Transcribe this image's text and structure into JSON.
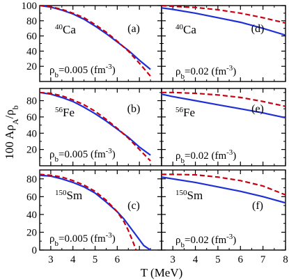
{
  "figure": {
    "ylabel_main": "100 Aρ",
    "ylabel_sub1": "A",
    "ylabel_slash": "/ρ",
    "ylabel_sub2": "b",
    "xlabel": "T (MeV)"
  },
  "style": {
    "solid_color": "#1f2fd6",
    "dashed_color": "#c8000f"
  },
  "chart_data": [
    {
      "type": "line",
      "panel_label": "(a)",
      "nucleus_mass": "40",
      "nucleus_symbol": "Ca",
      "density_text": "=0.005 (fm",
      "density_exp": "-3",
      "density_close": ")",
      "xlim": [
        2.5,
        8
      ],
      "ylim": [
        0,
        100
      ],
      "xticks": [
        3,
        4,
        5,
        6,
        7
      ],
      "xtick_labels": [
        "",
        "",
        "",
        "",
        ""
      ],
      "yticks": [
        20,
        40,
        60,
        80,
        100
      ],
      "ytick_labels": [
        "20",
        "40",
        "60",
        "80",
        "100"
      ],
      "series": [
        {
          "style": "solid",
          "x": [
            2.5,
            3,
            3.5,
            4,
            4.5,
            5,
            5.5,
            6,
            6.5,
            7,
            7.5
          ],
          "y": [
            100,
            98,
            94,
            89,
            82,
            73,
            63,
            52,
            41,
            28,
            16
          ]
        },
        {
          "style": "dashed",
          "x": [
            2.5,
            3,
            3.5,
            4,
            4.5,
            5,
            5.5,
            6,
            6.5,
            7,
            7.5
          ],
          "y": [
            100,
            98.5,
            95,
            90,
            84,
            75,
            65,
            53,
            40,
            24,
            7
          ]
        }
      ]
    },
    {
      "type": "line",
      "panel_label": "(d)",
      "nucleus_mass": "40",
      "nucleus_symbol": "Ca",
      "density_text": "=0.02 (fm",
      "density_exp": "-3",
      "density_close": ")",
      "xlim": [
        2.5,
        8
      ],
      "ylim": [
        0,
        100
      ],
      "xticks": [
        3,
        4,
        5,
        6,
        7,
        8
      ],
      "xtick_labels": [
        "",
        "",
        "",
        "",
        "",
        ""
      ],
      "yticks": [
        20,
        40,
        60,
        80,
        100
      ],
      "ytick_labels": [
        "",
        "",
        "",
        "",
        ""
      ],
      "series": [
        {
          "style": "solid",
          "x": [
            2.5,
            3,
            4,
            5,
            6,
            7,
            8
          ],
          "y": [
            97,
            95,
            90,
            84,
            78,
            70,
            61
          ]
        },
        {
          "style": "dashed",
          "x": [
            2.5,
            3,
            4,
            5,
            6,
            7,
            8
          ],
          "y": [
            100,
            99,
            97.5,
            94.5,
            90,
            84,
            77
          ]
        }
      ]
    },
    {
      "type": "line",
      "panel_label": "(b)",
      "nucleus_mass": "56",
      "nucleus_symbol": "Fe",
      "density_text": "=0.005 (fm",
      "density_exp": "-3",
      "density_close": ")",
      "xlim": [
        2.5,
        8
      ],
      "ylim": [
        0,
        95
      ],
      "xticks": [
        3,
        4,
        5,
        6,
        7
      ],
      "xtick_labels": [
        "",
        "",
        "",
        "",
        ""
      ],
      "yticks": [
        20,
        40,
        60,
        80
      ],
      "ytick_labels": [
        "20",
        "40",
        "60",
        "80"
      ],
      "series": [
        {
          "style": "solid",
          "x": [
            2.5,
            3,
            3.5,
            4,
            4.5,
            5,
            5.5,
            6,
            6.5,
            7,
            7.5
          ],
          "y": [
            90,
            88,
            84,
            79,
            72,
            64,
            55,
            45,
            35,
            23,
            13
          ]
        },
        {
          "style": "dashed",
          "x": [
            2.5,
            3,
            3.5,
            4,
            4.5,
            5,
            5.5,
            6,
            6.5,
            7,
            7.5
          ],
          "y": [
            90,
            89,
            86,
            81,
            75,
            67,
            57,
            46,
            34,
            20,
            6
          ]
        }
      ]
    },
    {
      "type": "line",
      "panel_label": "(e)",
      "nucleus_mass": "56",
      "nucleus_symbol": "Fe",
      "density_text": "=0.02 (fm",
      "density_exp": "-3",
      "density_close": ")",
      "xlim": [
        2.5,
        8
      ],
      "ylim": [
        0,
        95
      ],
      "xticks": [
        3,
        4,
        5,
        6,
        7,
        8
      ],
      "xtick_labels": [
        "",
        "",
        "",
        "",
        "",
        ""
      ],
      "yticks": [
        20,
        40,
        60,
        80
      ],
      "ytick_labels": [
        "",
        "",
        "",
        ""
      ],
      "series": [
        {
          "style": "solid",
          "x": [
            2.5,
            3,
            4,
            5,
            6,
            7,
            8
          ],
          "y": [
            88,
            85,
            80,
            75,
            70,
            65,
            59
          ]
        },
        {
          "style": "dashed",
          "x": [
            2.5,
            3,
            4,
            5,
            6,
            7,
            8
          ],
          "y": [
            90,
            90,
            89,
            87,
            84,
            79,
            73
          ]
        }
      ]
    },
    {
      "type": "line",
      "panel_label": "(c)",
      "nucleus_mass": "150",
      "nucleus_symbol": "Sm",
      "density_text": "=0.005 (fm",
      "density_exp": "-3",
      "density_close": ")",
      "xlim": [
        2.5,
        8
      ],
      "ylim": [
        0,
        90
      ],
      "xticks": [
        3,
        4,
        5,
        6,
        7
      ],
      "xtick_labels": [
        "3",
        "4",
        "5",
        "6",
        ""
      ],
      "yticks": [
        0,
        20,
        40,
        60,
        80
      ],
      "ytick_labels": [
        "0",
        "20",
        "40",
        "60",
        "80"
      ],
      "series": [
        {
          "style": "solid",
          "x": [
            2.5,
            3,
            3.5,
            4,
            4.5,
            5,
            5.5,
            6,
            6.3,
            6.6,
            6.9,
            7.2,
            7.5
          ],
          "y": [
            84,
            83,
            80,
            76,
            71,
            64,
            54,
            43,
            35,
            25,
            15,
            5,
            0
          ]
        },
        {
          "style": "dashed",
          "x": [
            2.5,
            3,
            3.5,
            4,
            4.5,
            5,
            5.5,
            6,
            6.3,
            6.5,
            6.7,
            6.85
          ],
          "y": [
            85,
            84,
            82,
            78,
            73,
            66,
            56,
            43,
            32,
            22,
            10,
            0
          ]
        }
      ]
    },
    {
      "type": "line",
      "panel_label": "(f)",
      "nucleus_mass": "150",
      "nucleus_symbol": "Sm",
      "density_text": "=0.02 (fm",
      "density_exp": "-3",
      "density_close": ")",
      "xlim": [
        2.5,
        8
      ],
      "ylim": [
        0,
        90
      ],
      "xticks": [
        3,
        4,
        5,
        6,
        7,
        8
      ],
      "xtick_labels": [
        "3",
        "4",
        "5",
        "6",
        "7",
        "8"
      ],
      "yticks": [
        0,
        20,
        40,
        60,
        80
      ],
      "ytick_labels": [
        "",
        "",
        "",
        "",
        ""
      ],
      "series": [
        {
          "style": "solid",
          "x": [
            2.5,
            3,
            4,
            5,
            6,
            7,
            8
          ],
          "y": [
            82,
            80,
            76,
            71,
            66,
            60,
            53
          ]
        },
        {
          "style": "dashed",
          "x": [
            2.5,
            3,
            4,
            5,
            6,
            7,
            8
          ],
          "y": [
            85,
            85,
            84.5,
            82,
            78,
            72,
            62
          ]
        }
      ]
    }
  ]
}
